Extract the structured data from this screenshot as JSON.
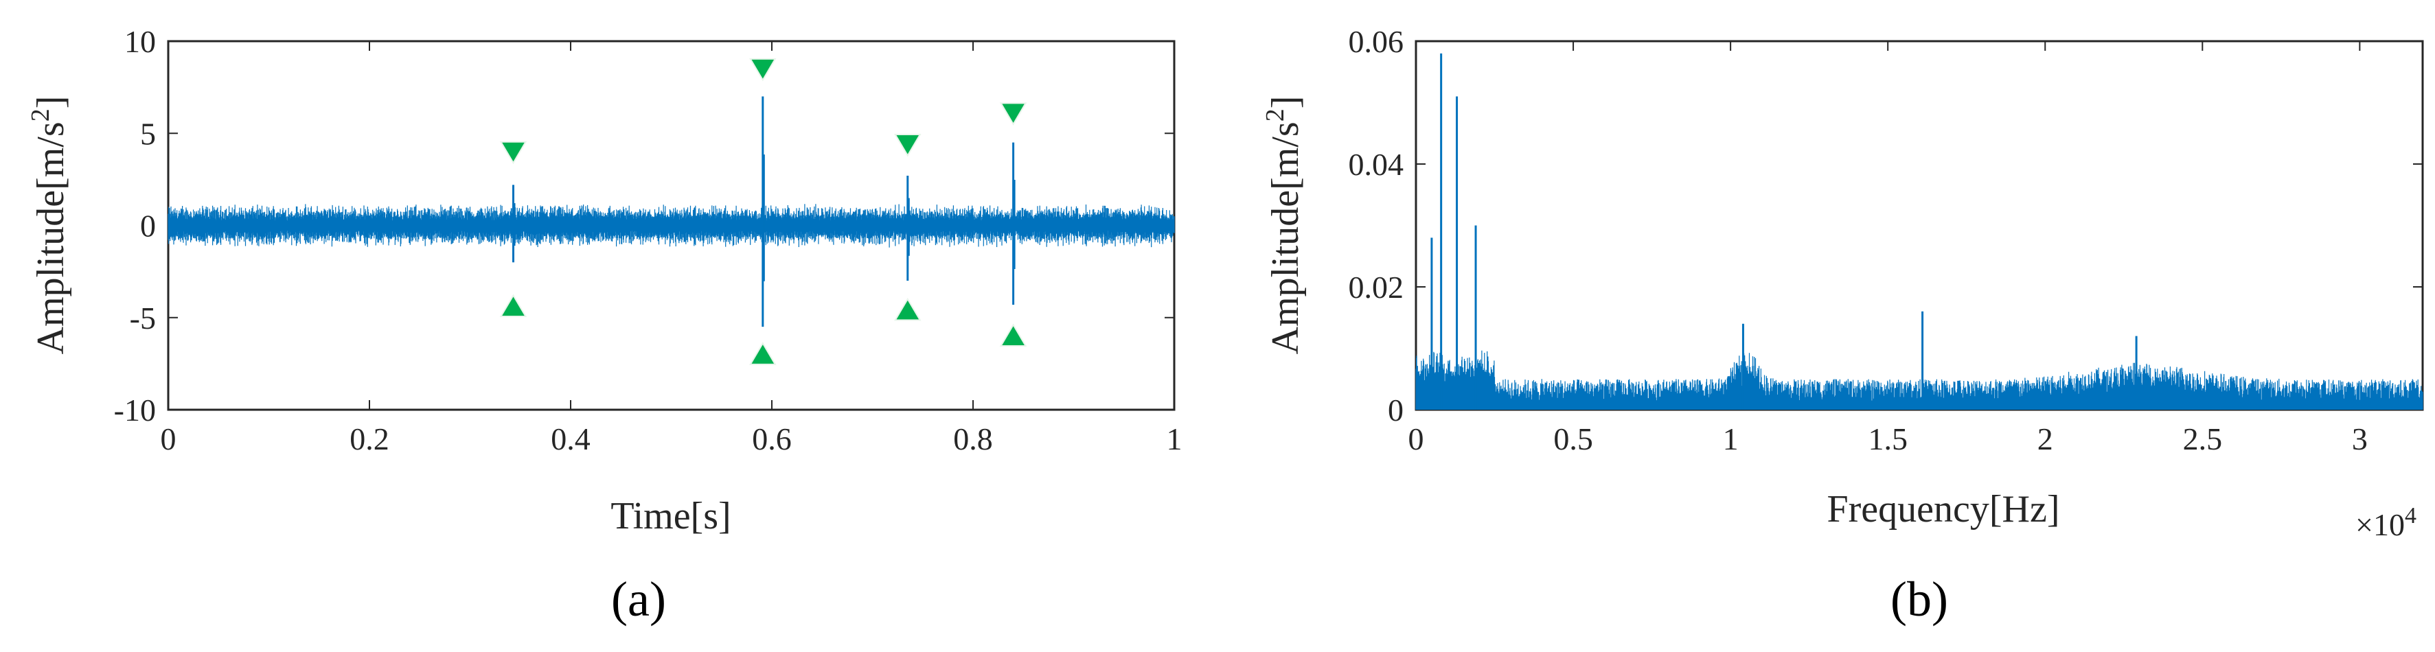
{
  "colors": {
    "signal": "#0072BD",
    "marker": "#00B050",
    "axis": "#262626"
  },
  "chart_data": [
    {
      "panel": "a",
      "type": "line",
      "caption": "(a)",
      "xlabel": "Time[s]",
      "ylabel_main": "Amplitude[m/s",
      "ylabel_sup": "2",
      "ylabel_close": "]",
      "xlim": [
        0,
        1
      ],
      "ylim": [
        -10,
        10
      ],
      "xticks": [
        0,
        0.2,
        0.4,
        0.6,
        0.8,
        1
      ],
      "xtick_labels": [
        "0",
        "0.2",
        "0.4",
        "0.6",
        "0.8",
        "1"
      ],
      "yticks": [
        10,
        5,
        0,
        -5,
        -10
      ],
      "ytick_labels": [
        "10",
        "5",
        "0",
        "-5",
        "-10"
      ],
      "noise_band": [
        -1.2,
        1.2
      ],
      "impulses": [
        {
          "t": 0.343,
          "peak": 2.2,
          "trough": -2.0
        },
        {
          "t": 0.591,
          "peak": 7.0,
          "trough": -5.5
        },
        {
          "t": 0.735,
          "peak": 2.7,
          "trough": -3.0
        },
        {
          "t": 0.84,
          "peak": 4.5,
          "trough": -4.3
        }
      ],
      "markers_down": [
        {
          "x": 0.343,
          "y": 4.0
        },
        {
          "x": 0.591,
          "y": 8.5
        },
        {
          "x": 0.735,
          "y": 4.4
        },
        {
          "x": 0.84,
          "y": 6.1
        }
      ],
      "markers_up": [
        {
          "x": 0.343,
          "y": -4.4
        },
        {
          "x": 0.591,
          "y": -7.0
        },
        {
          "x": 0.735,
          "y": -4.6
        },
        {
          "x": 0.84,
          "y": -6.0
        }
      ]
    },
    {
      "panel": "b",
      "type": "line",
      "caption": "(b)",
      "xlabel": "Frequency[Hz]",
      "ylabel_main": "Amplitude[m/s",
      "ylabel_sup": "2",
      "ylabel_close": "]",
      "x_multiplier_base": "×10",
      "x_multiplier_exp": "4",
      "xlim": [
        0,
        3.2
      ],
      "ylim": [
        0,
        0.06
      ],
      "xticks": [
        0,
        0.5,
        1,
        1.5,
        2,
        2.5,
        3
      ],
      "xtick_labels": [
        "0",
        "0.5",
        "1",
        "1.5",
        "2",
        "2.5",
        "3"
      ],
      "yticks": [
        0.06,
        0.04,
        0.02,
        0
      ],
      "ytick_labels": [
        "0.06",
        "0.04",
        "0.02",
        "0"
      ],
      "baseline_level": 0.004,
      "peaks": [
        {
          "f": 0.08,
          "amp": 0.058
        },
        {
          "f": 0.13,
          "amp": 0.051
        },
        {
          "f": 0.19,
          "amp": 0.03
        },
        {
          "f": 0.05,
          "amp": 0.028
        },
        {
          "f": 1.04,
          "amp": 0.014
        },
        {
          "f": 1.61,
          "amp": 0.016
        },
        {
          "f": 2.29,
          "amp": 0.012
        }
      ]
    }
  ]
}
